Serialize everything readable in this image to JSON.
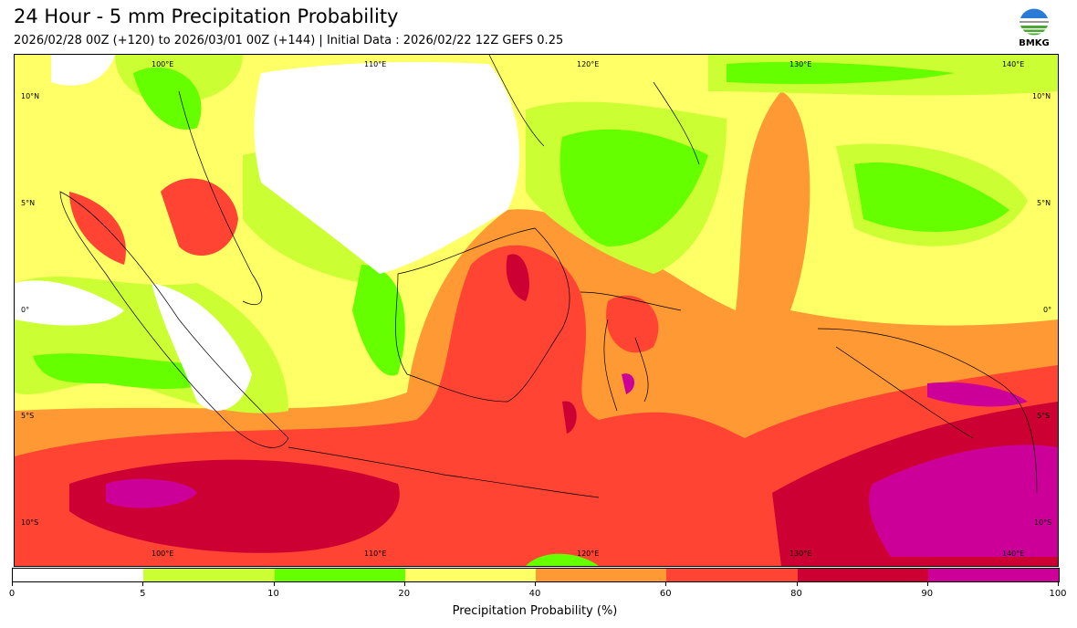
{
  "header": {
    "title": "24 Hour - 5 mm Precipitation Probability",
    "subtitle": "2026/02/28 00Z (+120) to 2026/03/01 00Z (+144) | Initial Data : 2026/02/22 12Z GEFS 0.25",
    "logo_text": "BMKG"
  },
  "map": {
    "lon_labels": [
      "100°E",
      "110°E",
      "120°E",
      "130°E",
      "140°E"
    ],
    "lat_labels": [
      "10°N",
      "5°N",
      "0°",
      "5°S",
      "10°S"
    ]
  },
  "colorbar": {
    "label": "Precipitation Probability (%)",
    "ticks": [
      "0",
      "5",
      "10",
      "20",
      "40",
      "60",
      "80",
      "90",
      "100"
    ],
    "colors": [
      "#ffffff",
      "#ccff33",
      "#66ff00",
      "#ffff66",
      "#ff9933",
      "#ff4433",
      "#cc0033",
      "#cc0099"
    ]
  }
}
